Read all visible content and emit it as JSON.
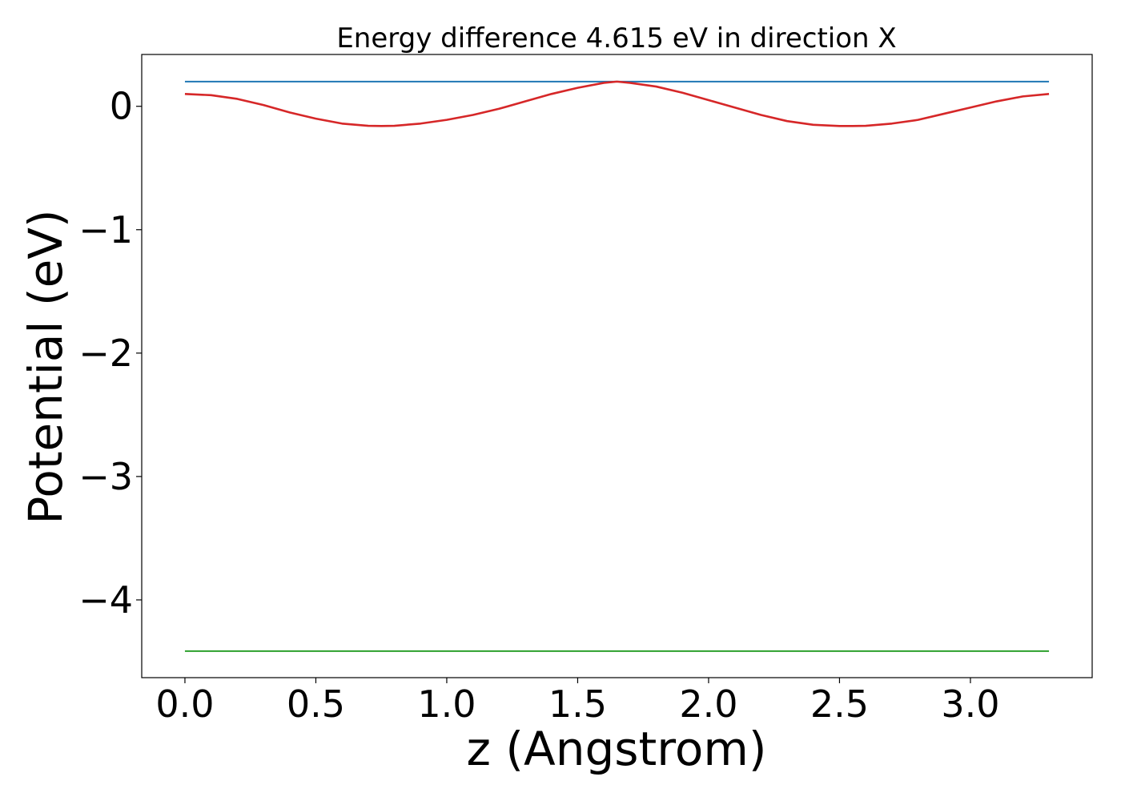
{
  "chart_data": {
    "type": "line",
    "title": "Energy difference 4.615 eV in direction X",
    "xlabel": "z (Angstrom)",
    "ylabel": "Potential (eV)",
    "xlim": [
      -0.165,
      3.465
    ],
    "ylim": [
      -4.63,
      0.42
    ],
    "xticks": [
      0.0,
      0.5,
      1.0,
      1.5,
      2.0,
      2.5,
      3.0
    ],
    "xtick_labels": [
      "0.0",
      "0.5",
      "1.0",
      "1.5",
      "2.0",
      "2.5",
      "3.0"
    ],
    "yticks": [
      0,
      -1,
      -2,
      -3,
      -4
    ],
    "ytick_labels": [
      "0",
      "−1",
      "−2",
      "−3",
      "−4"
    ],
    "grid": false,
    "legend": "none",
    "series": [
      {
        "color": "#1f77b4",
        "x": [
          0.0,
          3.3
        ],
        "y": [
          0.2,
          0.2
        ]
      },
      {
        "color": "#d62728",
        "x": [
          0.0,
          0.1,
          0.2,
          0.3,
          0.4,
          0.5,
          0.6,
          0.7,
          0.75,
          0.8,
          0.9,
          1.0,
          1.1,
          1.2,
          1.3,
          1.4,
          1.5,
          1.6,
          1.65,
          1.7,
          1.8,
          1.9,
          2.0,
          2.1,
          2.2,
          2.3,
          2.4,
          2.5,
          2.55,
          2.6,
          2.7,
          2.8,
          2.9,
          3.0,
          3.1,
          3.2,
          3.3
        ],
        "y": [
          0.1,
          0.09,
          0.06,
          0.01,
          -0.05,
          -0.1,
          -0.14,
          -0.158,
          -0.16,
          -0.158,
          -0.14,
          -0.11,
          -0.07,
          -0.02,
          0.04,
          0.1,
          0.15,
          0.19,
          0.2,
          0.19,
          0.16,
          0.11,
          0.05,
          -0.01,
          -0.07,
          -0.12,
          -0.15,
          -0.16,
          -0.16,
          -0.158,
          -0.14,
          -0.11,
          -0.06,
          -0.01,
          0.04,
          0.08,
          0.1
        ]
      },
      {
        "color": "#2ca02c",
        "x": [
          0.0,
          3.3
        ],
        "y": [
          -4.415,
          -4.415
        ]
      }
    ]
  }
}
